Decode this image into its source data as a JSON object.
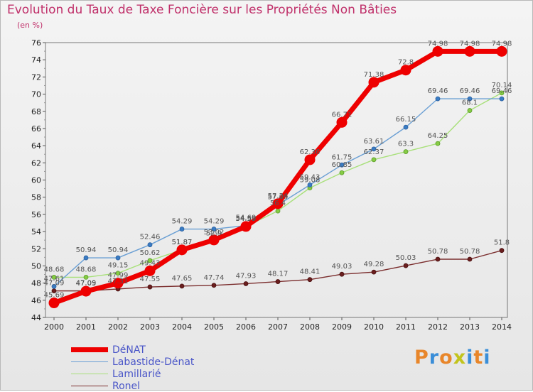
{
  "title": "Evolution du Taux de Taxe Foncière sur les Propriétés Non Bâties",
  "unit": "(en %)",
  "logo": {
    "text": "Proxiti",
    "colors": [
      "#e8862a",
      "#3a8ed8",
      "#e8862a",
      "#c2c41c",
      "#3a8ed8",
      "#e8862a",
      "#3a8ed8"
    ]
  },
  "chart_data": {
    "type": "line",
    "title": "Evolution du Taux de Taxe Foncière sur les Propriétés Non Bâties",
    "ylabel": "(en %)",
    "xlabel": "",
    "ylim": [
      44,
      76
    ],
    "yticks": [
      44,
      46,
      48,
      50,
      52,
      54,
      56,
      58,
      60,
      62,
      64,
      66,
      68,
      70,
      72,
      74,
      76
    ],
    "grid": false,
    "legend_position": "bottom-left",
    "x": [
      2000,
      2001,
      2002,
      2003,
      2004,
      2005,
      2006,
      2007,
      2008,
      2009,
      2010,
      2011,
      2012,
      2013,
      2014
    ],
    "series": [
      {
        "name": "DéNAT",
        "color": "#ee0000",
        "values": [
          45.69,
          47.05,
          47.99,
          49.43,
          51.87,
          53.02,
          54.59,
          57.24,
          62.36,
          66.71,
          71.38,
          72.8,
          74.98,
          74.98,
          74.98
        ]
      },
      {
        "name": "Labastide-Dénat",
        "color": "#6a9fd4",
        "values": [
          47.61,
          50.94,
          50.94,
          52.46,
          54.29,
          54.29,
          54.69,
          57.09,
          59.43,
          61.75,
          63.61,
          66.15,
          69.46,
          69.46,
          69.46
        ]
      },
      {
        "name": "Lamillarié",
        "color": "#a8e07a",
        "values": [
          48.68,
          48.68,
          49.15,
          50.62,
          51.87,
          52.9,
          54.59,
          56.4,
          59.08,
          60.85,
          62.37,
          63.3,
          64.25,
          68.1,
          70.14
        ]
      },
      {
        "name": "Ronel",
        "color": "#7b2e2e",
        "values": [
          47.09,
          47.09,
          47.31,
          47.55,
          47.65,
          47.74,
          47.93,
          48.17,
          48.41,
          49.03,
          49.28,
          50.03,
          50.78,
          50.78,
          51.8
        ]
      }
    ]
  }
}
